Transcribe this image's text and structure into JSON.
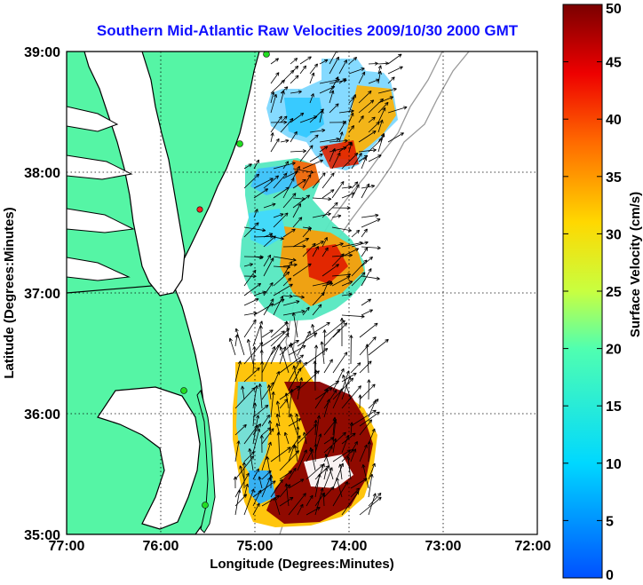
{
  "title": "Southern Mid-Atlantic Raw Velocities 2009/10/30 2000 GMT",
  "xlabel": "Longitude (Degrees:Minutes)",
  "ylabel": "Latitude (Degrees:Minutes)",
  "xticks": [
    "77:00",
    "76:00",
    "75:00",
    "74:00",
    "73:00",
    "72:00"
  ],
  "yticks": [
    "39:00",
    "38:00",
    "37:00",
    "36:00",
    "35:00"
  ],
  "colorbar": {
    "label": "Surface Velocity (cm/s)",
    "min": 0,
    "max": 50,
    "ticks": [
      "0",
      "5",
      "10",
      "15",
      "20",
      "25",
      "30",
      "35",
      "40",
      "45",
      "50"
    ]
  },
  "colors": {
    "land": "#55f5a5",
    "coast": "#000000",
    "title": "#1010ff",
    "station": "#22dd22",
    "station_alt": "#ff2222"
  }
}
